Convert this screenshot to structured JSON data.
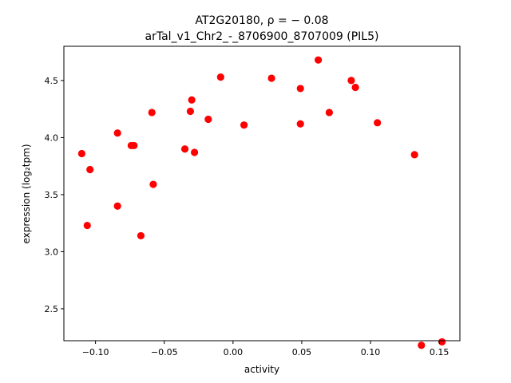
{
  "chart_data": {
    "type": "scatter",
    "title": "AT2G20180, ρ = − 0.08",
    "subtitle": "arTal_v1_Chr2_-_8706900_8707009 (PIL5)",
    "xlabel": "activity",
    "ylabel": "expression (log₂tpm)",
    "xlim": [
      -0.123,
      0.165
    ],
    "ylim": [
      2.22,
      4.8
    ],
    "xticks": [
      -0.1,
      -0.05,
      0.0,
      0.05,
      0.1,
      0.15
    ],
    "xtick_labels": [
      "−0.10",
      "−0.05",
      "0.00",
      "0.05",
      "0.10",
      "0.15"
    ],
    "yticks": [
      2.5,
      3.0,
      3.5,
      4.0,
      4.5
    ],
    "ytick_labels": [
      "2.5",
      "3.0",
      "3.5",
      "4.0",
      "4.5"
    ],
    "grid": false,
    "point_color": "#ff0000",
    "points": [
      {
        "x": -0.11,
        "y": 3.86
      },
      {
        "x": -0.104,
        "y": 3.72
      },
      {
        "x": -0.106,
        "y": 3.23
      },
      {
        "x": -0.084,
        "y": 4.04
      },
      {
        "x": -0.084,
        "y": 3.4
      },
      {
        "x": -0.074,
        "y": 3.93
      },
      {
        "x": -0.072,
        "y": 3.93
      },
      {
        "x": -0.067,
        "y": 3.14
      },
      {
        "x": -0.059,
        "y": 4.22
      },
      {
        "x": -0.058,
        "y": 3.59
      },
      {
        "x": -0.035,
        "y": 3.9
      },
      {
        "x": -0.031,
        "y": 4.23
      },
      {
        "x": -0.03,
        "y": 4.33
      },
      {
        "x": -0.028,
        "y": 3.87
      },
      {
        "x": -0.018,
        "y": 4.16
      },
      {
        "x": -0.009,
        "y": 4.53
      },
      {
        "x": 0.008,
        "y": 4.11
      },
      {
        "x": 0.028,
        "y": 4.52
      },
      {
        "x": 0.049,
        "y": 4.43
      },
      {
        "x": 0.049,
        "y": 4.12
      },
      {
        "x": 0.062,
        "y": 4.68
      },
      {
        "x": 0.07,
        "y": 4.22
      },
      {
        "x": 0.086,
        "y": 4.5
      },
      {
        "x": 0.089,
        "y": 4.44
      },
      {
        "x": 0.105,
        "y": 4.13
      },
      {
        "x": 0.132,
        "y": 3.85
      },
      {
        "x": 0.137,
        "y": 2.18
      },
      {
        "x": 0.152,
        "y": 2.21
      }
    ]
  }
}
